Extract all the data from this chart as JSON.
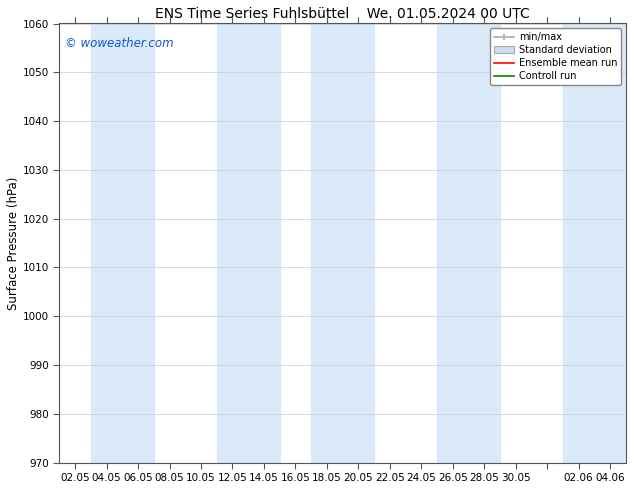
{
  "title_left": "ENS Time Series Fuhlsbüttel",
  "title_right": "We. 01.05.2024 00 UTC",
  "ylabel": "Surface Pressure (hPa)",
  "watermark": "© woweather.com",
  "ylim": [
    970,
    1060
  ],
  "yticks": [
    970,
    980,
    990,
    1000,
    1010,
    1020,
    1030,
    1040,
    1050,
    1060
  ],
  "xtick_labels": [
    "02.05",
    "04.05",
    "06.05",
    "08.05",
    "10.05",
    "12.05",
    "14.05",
    "16.05",
    "18.05",
    "20.05",
    "22.05",
    "24.05",
    "26.05",
    "28.05",
    "30.05",
    "",
    "02.06",
    "04.06"
  ],
  "band_color": "#daeaf8",
  "bg_color": "#ffffff",
  "legend_items": [
    {
      "label": "min/max",
      "color": "#aaaaaa"
    },
    {
      "label": "Standard deviation",
      "color": "#c8dff0"
    },
    {
      "label": "Ensemble mean run",
      "color": "#ff0000"
    },
    {
      "label": "Controll run",
      "color": "#008800"
    }
  ],
  "title_fontsize": 10,
  "tick_fontsize": 7.5,
  "label_fontsize": 8.5,
  "watermark_fontsize": 8.5
}
